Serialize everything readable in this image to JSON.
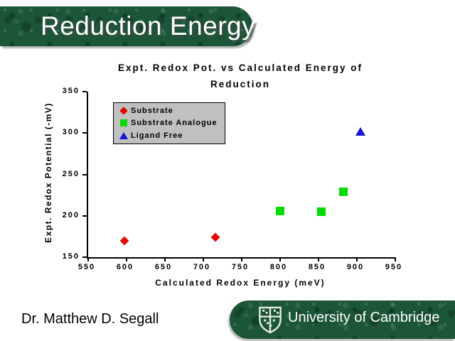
{
  "slide": {
    "title": "Reduction Energy",
    "footer_left": "Dr. Matthew D. Segall",
    "footer_right": "University of Cambridge"
  },
  "colors": {
    "banner_green": "#1c5639",
    "legend_bg": "#c0c0c0",
    "substrate_red": "#ee0000",
    "analogue_green": "#00dd00",
    "ligand_blue": "#1414dd"
  },
  "icons": {
    "crest": "cambridge-crest-icon"
  },
  "chart_data": {
    "type": "scatter",
    "title_line1": "Expt. Redox Pot. vs Calculated Energy of",
    "title_line2": "Reduction",
    "xlabel": "Calculated Redox Energy (meV)",
    "ylabel": "Expt. Redox Potential (-mV)",
    "xlim": [
      550,
      950
    ],
    "ylim": [
      150,
      350
    ],
    "xticks": [
      550,
      600,
      650,
      700,
      750,
      800,
      850,
      900,
      950
    ],
    "yticks": [
      150,
      200,
      250,
      300,
      350
    ],
    "grid": false,
    "legend_position": "inside-top-left",
    "series": [
      {
        "name": "Substrate",
        "marker": "diamond",
        "color": "#ee0000",
        "points": [
          [
            597,
            170
          ],
          [
            716,
            174
          ]
        ]
      },
      {
        "name": "Substrate Analogue",
        "marker": "square",
        "color": "#00dd00",
        "points": [
          [
            800,
            206
          ],
          [
            854,
            205
          ],
          [
            882,
            229
          ]
        ]
      },
      {
        "name": "Ligand Free",
        "marker": "triangle",
        "color": "#1414dd",
        "points": [
          [
            905,
            302
          ]
        ]
      }
    ]
  }
}
